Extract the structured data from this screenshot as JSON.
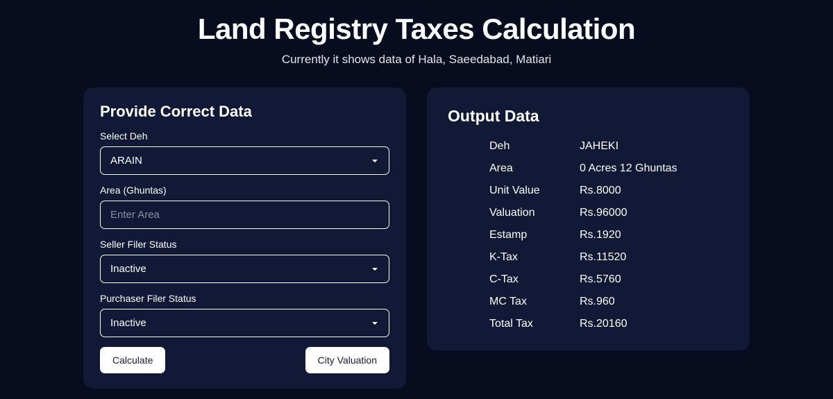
{
  "header": {
    "title": "Land Registry Taxes Calculation",
    "subtitle": "Currently it shows data of Hala, Saeedabad, Matiari"
  },
  "input": {
    "card_title": "Provide Correct Data",
    "fields": {
      "deh": {
        "label": "Select Deh",
        "value": "ARAIN"
      },
      "area": {
        "label": "Area (Ghuntas)",
        "placeholder": "Enter Area",
        "value": ""
      },
      "seller_status": {
        "label": "Seller Filer Status",
        "value": "Inactive"
      },
      "purchaser_status": {
        "label": "Purchaser Filer Status",
        "value": "Inactive"
      }
    },
    "buttons": {
      "calculate": "Calculate",
      "city_valuation": "City Valuation"
    }
  },
  "output": {
    "card_title": "Output Data",
    "rows": [
      {
        "key": "Deh",
        "value": "JAHEKI"
      },
      {
        "key": "Area",
        "value": "0 Acres 12 Ghuntas"
      },
      {
        "key": "Unit Value",
        "value": "Rs.8000"
      },
      {
        "key": "Valuation",
        "value": "Rs.96000"
      },
      {
        "key": "Estamp",
        "value": "Rs.1920"
      },
      {
        "key": "K-Tax",
        "value": "Rs.11520"
      },
      {
        "key": "C-Tax",
        "value": "Rs.5760"
      },
      {
        "key": "MC Tax",
        "value": "Rs.960"
      },
      {
        "key": "Total Tax",
        "value": "Rs.20160"
      }
    ]
  },
  "styling": {
    "page_bg": "#070c1f",
    "card_bg": "#111936",
    "text_color": "#ffffff",
    "subtitle_color": "#e5e5e5",
    "placeholder_color": "#8a8f9e",
    "border_color": "#ffffff",
    "button_bg": "#ffffff",
    "button_text": "#111936",
    "card_radius": 14,
    "control_radius": 7,
    "title_fontsize": 42,
    "subtitle_fontsize": 17,
    "card_title_fontsize": 22,
    "label_fontsize": 14,
    "control_fontsize": 15,
    "output_fontsize": 16
  }
}
